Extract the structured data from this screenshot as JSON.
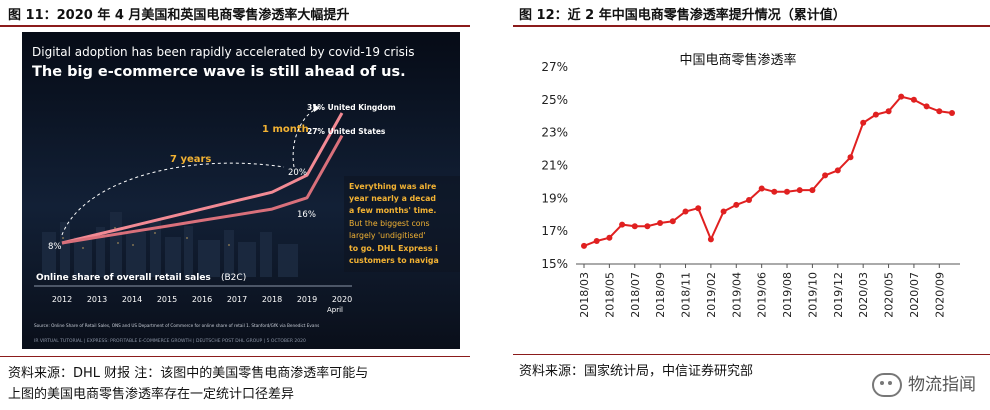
{
  "left": {
    "caption": "图 11：2020 年 4 月美国和英国电商零售渗透率大幅提升",
    "source_line1": "资料来源：DHL 财报   注：该图中的美国零售电商渗透率可能与",
    "source_line2": "上图的美国电商零售渗透率存在一定统计口径差异",
    "headline1": "Digital adoption has been rapidly accelerated by covid-19 crisis",
    "headline2": "The big e-commerce wave is still ahead of us.",
    "label_uk": "31% United Kingdom",
    "label_us": "27% United States",
    "label_1month": "1 month",
    "label_7years": "7 years",
    "label_8": "8%",
    "label_16": "16%",
    "label_20": "20%",
    "callout_lines": [
      "Everything was alre",
      "year nearly a decad",
      "a few months' time.",
      "But the biggest cons",
      "largely 'undigitised'",
      "to go. DHL Express i",
      "customers to naviga"
    ],
    "axis_title_a": "Online share of overall retail sales",
    "axis_title_b": "(B2C)",
    "years": [
      "2012",
      "2013",
      "2014",
      "2015",
      "2016",
      "2017",
      "2018",
      "2019",
      "2020"
    ],
    "april": "April",
    "footnote": "Source: Online Share of Retail Sales, ONS and US Department of Commerce for online share of retail 1. Stanford/GfK via Benedict Evans",
    "bottom_strip": "IR VIRTUAL TUTORIAL | EXPRESS: PROFITABLE E-COMMERCE GROWTH | DEUTSCHE POST DHL GROUP | 5 OCTOBER 2020",
    "colors": {
      "accent": "#f2b233",
      "line": "#e8878c",
      "background": "#0d1422"
    }
  },
  "right": {
    "caption": "图 12：近 2 年中国电商零售渗透率提升情况（累计值）",
    "source": "资料来源：国家统计局，中信证券研究部",
    "watermark": "物流指闻"
  },
  "chart_data": [
    {
      "type": "line",
      "title": "",
      "xlabel": "",
      "ylabel": "Online share of overall retail sales (B2C)",
      "categories": [
        "2012",
        "2013",
        "2014",
        "2015",
        "2016",
        "2017",
        "2018",
        "2019",
        "2020 April"
      ],
      "series": [
        {
          "name": "United Kingdom",
          "values": [
            8,
            9.5,
            11,
            12.5,
            14,
            15.5,
            17,
            20,
            31
          ]
        },
        {
          "name": "United States",
          "values": [
            8,
            9,
            10,
            11,
            12,
            13,
            14,
            16,
            27
          ]
        }
      ],
      "annotations": [
        "7 years",
        "1 month"
      ]
    },
    {
      "type": "line",
      "title": "中国电商零售渗透率",
      "xlabel": "",
      "ylabel": "",
      "ylim": [
        15,
        27
      ],
      "yticks": [
        "15%",
        "17%",
        "19%",
        "21%",
        "23%",
        "25%",
        "27%"
      ],
      "x": [
        "2018/03",
        "2018/04",
        "2018/05",
        "2018/06",
        "2018/07",
        "2018/08",
        "2018/09",
        "2018/10",
        "2018/11",
        "2018/12",
        "2019/02",
        "2019/03",
        "2019/04",
        "2019/05",
        "2019/06",
        "2019/07",
        "2019/08",
        "2019/09",
        "2019/10",
        "2019/11",
        "2019/12",
        "2020/02",
        "2020/03",
        "2020/04",
        "2020/05",
        "2020/06",
        "2020/07",
        "2020/08",
        "2020/09",
        "2020/10"
      ],
      "xticks": [
        "2018/03",
        "2018/05",
        "2018/07",
        "2018/09",
        "2018/11",
        "2019/02",
        "2019/04",
        "2019/06",
        "2019/08",
        "2019/10",
        "2019/12",
        "2020/03",
        "2020/05",
        "2020/07",
        "2020/09"
      ],
      "series": [
        {
          "values": [
            16.1,
            16.4,
            16.6,
            17.4,
            17.3,
            17.3,
            17.5,
            17.6,
            18.2,
            18.4,
            16.5,
            18.2,
            18.6,
            18.9,
            19.6,
            19.4,
            19.4,
            19.5,
            19.5,
            20.4,
            20.7,
            21.5,
            23.6,
            24.1,
            24.3,
            25.2,
            25.0,
            24.6,
            24.3,
            24.2
          ]
        }
      ],
      "grid": false,
      "marker": "circle",
      "color": "#e02020"
    }
  ]
}
